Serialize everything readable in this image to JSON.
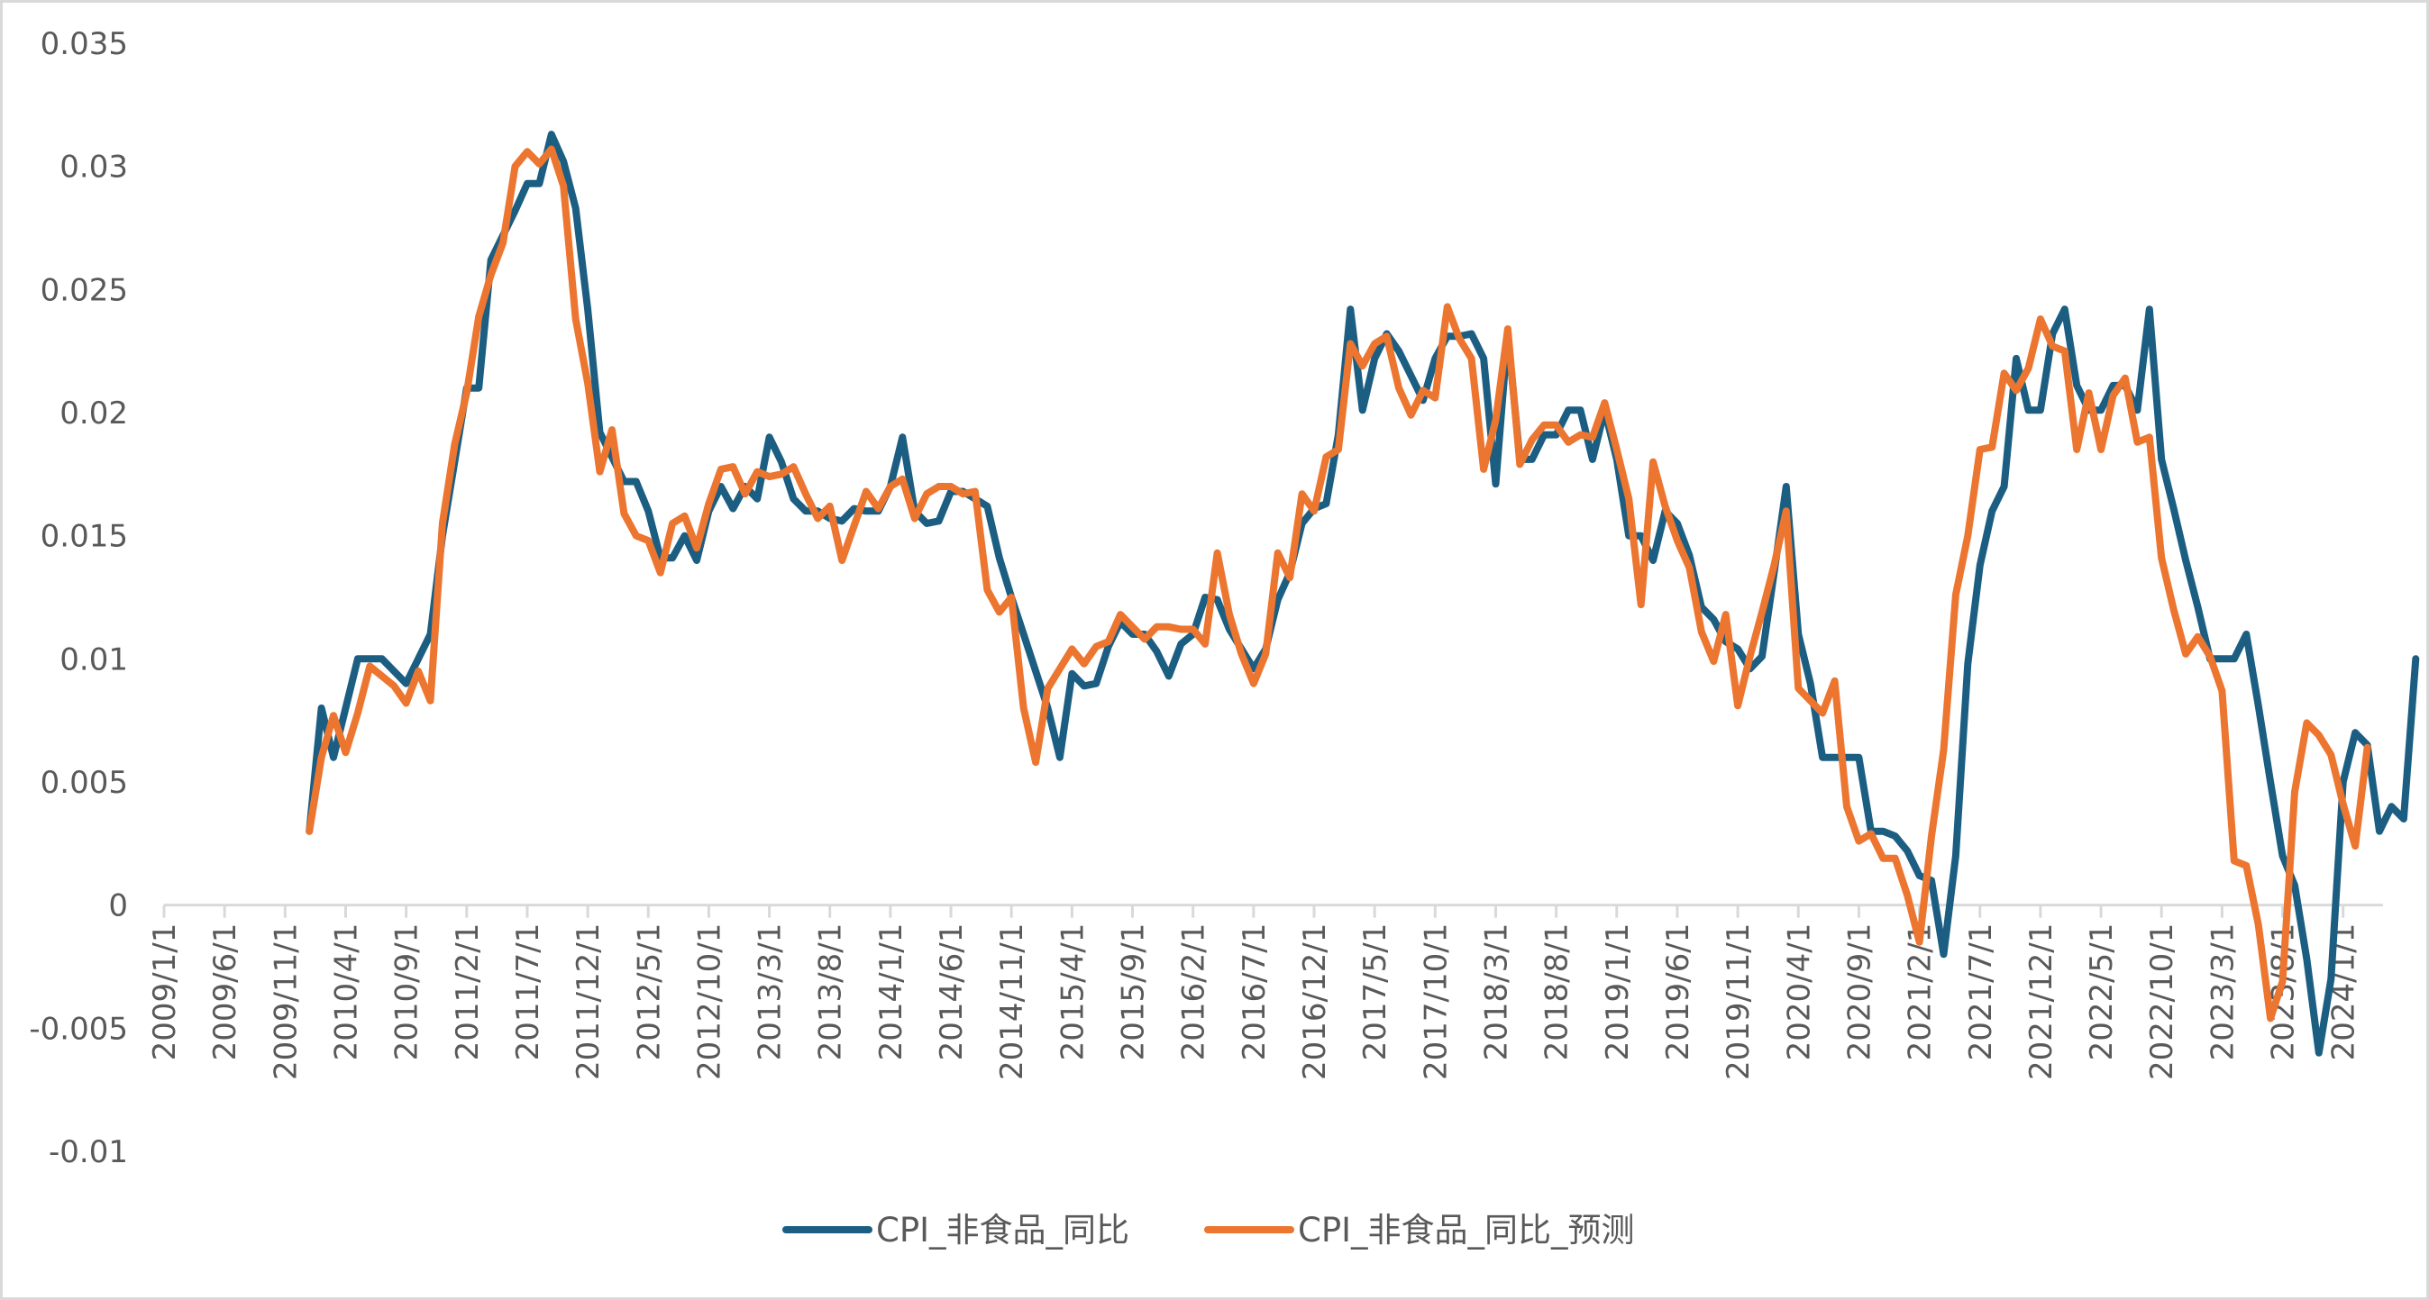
{
  "chart_data": {
    "type": "line",
    "title": "",
    "xlabel": "",
    "ylabel": "",
    "ylim": [
      -0.01,
      0.035
    ],
    "y_ticks": [
      "-0.01",
      "-0.005",
      "0",
      "0.005",
      "0.01",
      "0.015",
      "0.02",
      "0.025",
      "0.03",
      "0.035"
    ],
    "x_tick_labels": [
      "2009/1/1",
      "2009/6/1",
      "2009/11/1",
      "2010/4/1",
      "2010/9/1",
      "2011/2/1",
      "2011/7/1",
      "2011/12/1",
      "2012/5/1",
      "2012/10/1",
      "2013/3/1",
      "2013/8/1",
      "2014/1/1",
      "2014/6/1",
      "2014/11/1",
      "2015/4/1",
      "2015/9/1",
      "2016/2/1",
      "2016/7/1",
      "2016/12/1",
      "2017/5/1",
      "2017/10/1",
      "2018/3/1",
      "2018/8/1",
      "2019/1/1",
      "2019/6/1",
      "2019/11/1",
      "2020/4/1",
      "2020/9/1",
      "2021/2/1",
      "2021/7/1",
      "2021/12/1",
      "2022/5/1",
      "2022/10/1",
      "2023/3/1",
      "2023/8/1",
      "2024/1/1"
    ],
    "x_start": "2009/1/1",
    "x_end": "2024/4/1",
    "legend_position": "bottom",
    "grid": false,
    "series": [
      {
        "name": "CPI_非食品_同比",
        "color": "#1b5e82",
        "start": "2010/1/1",
        "values": [
          0.003,
          0.008,
          0.006,
          0.008,
          0.01,
          0.01,
          0.01,
          0.0095,
          0.009,
          0.01,
          0.011,
          0.015,
          0.018,
          0.021,
          0.021,
          0.0262,
          0.0272,
          0.0282,
          0.0293,
          0.0293,
          0.0313,
          0.0302,
          0.0283,
          0.0242,
          0.0192,
          0.0182,
          0.0172,
          0.0172,
          0.016,
          0.0141,
          0.0141,
          0.015,
          0.014,
          0.016,
          0.017,
          0.0161,
          0.017,
          0.0165,
          0.019,
          0.018,
          0.0165,
          0.016,
          0.016,
          0.0157,
          0.0156,
          0.0161,
          0.016,
          0.016,
          0.017,
          0.019,
          0.016,
          0.0155,
          0.0156,
          0.0168,
          0.0168,
          0.0165,
          0.0162,
          0.0141,
          0.0125,
          0.011,
          0.0095,
          0.008,
          0.006,
          0.0094,
          0.0089,
          0.009,
          0.0105,
          0.0115,
          0.011,
          0.011,
          0.0103,
          0.0093,
          0.0106,
          0.011,
          0.0125,
          0.0124,
          0.0112,
          0.0104,
          0.0096,
          0.0104,
          0.0124,
          0.0135,
          0.0155,
          0.0161,
          0.0163,
          0.0191,
          0.0242,
          0.0201,
          0.0222,
          0.0232,
          0.0225,
          0.0215,
          0.0205,
          0.0222,
          0.0231,
          0.0231,
          0.0232,
          0.0222,
          0.0171,
          0.0232,
          0.0181,
          0.0181,
          0.0191,
          0.0191,
          0.0201,
          0.0201,
          0.0181,
          0.0201,
          0.0181,
          0.015,
          0.015,
          0.014,
          0.016,
          0.0155,
          0.0142,
          0.0121,
          0.0116,
          0.0107,
          0.0104,
          0.0096,
          0.0101,
          0.0135,
          0.017,
          0.011,
          0.009,
          0.006,
          0.006,
          0.006,
          0.006,
          0.003,
          0.003,
          0.0028,
          0.0022,
          0.0012,
          0.001,
          -0.002,
          0.002,
          0.0098,
          0.0138,
          0.016,
          0.017,
          0.0222,
          0.0201,
          0.0201,
          0.0232,
          0.0242,
          0.0211,
          0.0201,
          0.0201,
          0.0211,
          0.0211,
          0.0201,
          0.0242,
          0.0181,
          0.0161,
          0.014,
          0.0121,
          0.01,
          0.01,
          0.01,
          0.011,
          0.0081,
          0.005,
          0.002,
          0.0008,
          -0.0022,
          -0.006,
          -0.003,
          0.005,
          0.007,
          0.0065,
          0.003,
          0.004,
          0.0035,
          0.01
        ]
      },
      {
        "name": "CPI_非食品_同比_预测",
        "color": "#ec7530",
        "start": "2010/1/1",
        "values": [
          0.003,
          0.006,
          0.0077,
          0.0062,
          0.0078,
          0.0097,
          0.0093,
          0.0089,
          0.0082,
          0.0095,
          0.0083,
          0.0155,
          0.0187,
          0.0208,
          0.0239,
          0.0256,
          0.0269,
          0.03,
          0.0306,
          0.0301,
          0.0307,
          0.0292,
          0.0238,
          0.0212,
          0.0176,
          0.0193,
          0.0159,
          0.015,
          0.0148,
          0.0135,
          0.0155,
          0.0158,
          0.0145,
          0.0163,
          0.0177,
          0.0178,
          0.0167,
          0.0176,
          0.0174,
          0.0175,
          0.0178,
          0.0167,
          0.0157,
          0.0162,
          0.014,
          0.0154,
          0.0168,
          0.0161,
          0.017,
          0.0173,
          0.0157,
          0.0167,
          0.017,
          0.017,
          0.0167,
          0.0168,
          0.0128,
          0.0119,
          0.0125,
          0.008,
          0.0058,
          0.0088,
          0.0096,
          0.0104,
          0.0098,
          0.0105,
          0.0107,
          0.0118,
          0.0113,
          0.0108,
          0.0113,
          0.0113,
          0.0112,
          0.0112,
          0.0106,
          0.0143,
          0.0118,
          0.0102,
          0.009,
          0.0102,
          0.0143,
          0.0133,
          0.0167,
          0.016,
          0.0182,
          0.0185,
          0.0228,
          0.0219,
          0.0228,
          0.0231,
          0.021,
          0.0199,
          0.0209,
          0.0206,
          0.0243,
          0.023,
          0.0222,
          0.0177,
          0.0197,
          0.0234,
          0.0179,
          0.0189,
          0.0195,
          0.0195,
          0.0188,
          0.0191,
          0.019,
          0.0204,
          0.0185,
          0.0165,
          0.0122,
          0.018,
          0.0162,
          0.0148,
          0.0137,
          0.0111,
          0.0099,
          0.0118,
          0.0081,
          0.0101,
          0.0119,
          0.0138,
          0.016,
          0.0088,
          0.0083,
          0.0078,
          0.0091,
          0.004,
          0.0026,
          0.0029,
          0.0019,
          0.0019,
          0.0004,
          -0.0015,
          0.0028,
          0.0063,
          0.0126,
          0.015,
          0.0185,
          0.0186,
          0.0216,
          0.0209,
          0.0218,
          0.0238,
          0.0227,
          0.0225,
          0.0185,
          0.0208,
          0.0185,
          0.0207,
          0.0214,
          0.0188,
          0.019,
          0.0141,
          0.012,
          0.0102,
          0.0109,
          0.0101,
          0.0087,
          0.0018,
          0.0016,
          -0.0008,
          -0.0046,
          -0.0031,
          0.0046,
          0.0074,
          0.0069,
          0.0061,
          0.0041,
          0.0024,
          0.0064
        ]
      }
    ]
  }
}
